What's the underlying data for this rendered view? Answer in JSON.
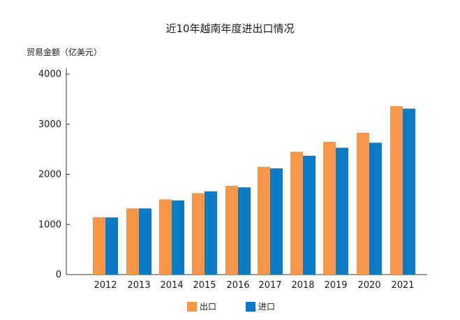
{
  "chart_data": {
    "type": "bar",
    "title": "近10年越南年度进出口情况",
    "ylabel": "贸易金额（亿美元）",
    "xlabel": "",
    "categories": [
      "2012",
      "2013",
      "2014",
      "2015",
      "2016",
      "2017",
      "2018",
      "2019",
      "2020",
      "2021"
    ],
    "series": [
      {
        "name": "出口",
        "color": "#f79646",
        "values": [
          1145,
          1320,
          1500,
          1625,
          1770,
          2150,
          2450,
          2650,
          2830,
          3360
        ]
      },
      {
        "name": "进口",
        "color": "#0a7cc6",
        "values": [
          1140,
          1320,
          1480,
          1660,
          1740,
          2120,
          2370,
          2530,
          2630,
          3310
        ]
      }
    ],
    "ylim": [
      0,
      4000
    ],
    "yticks": [
      "0",
      "1000",
      "2000",
      "3000",
      "4000"
    ],
    "grid": false,
    "legend_position": "bottom-center"
  }
}
